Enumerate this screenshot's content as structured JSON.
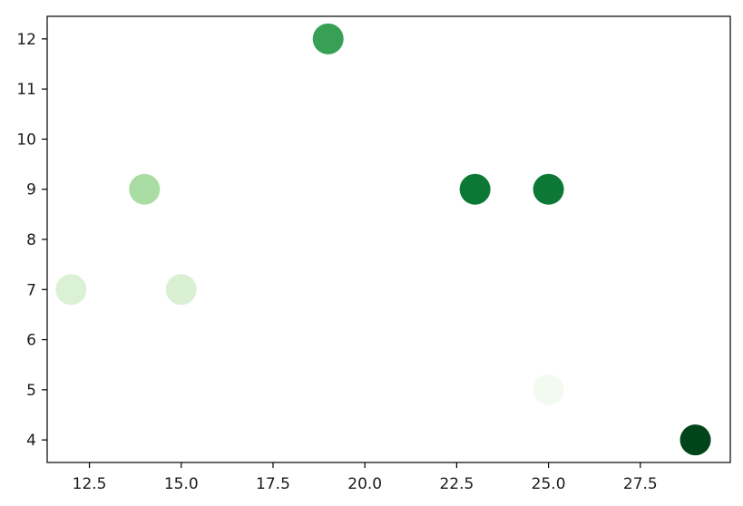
{
  "chart_data": {
    "type": "scatter",
    "title": "",
    "xlabel": "",
    "ylabel": "",
    "xlim": [
      11.35,
      29.95
    ],
    "ylim": [
      3.55,
      12.45
    ],
    "grid": false,
    "colormap": "Greens",
    "x_ticks": [
      12.5,
      15.0,
      17.5,
      20.0,
      22.5,
      25.0,
      27.5
    ],
    "x_tick_labels": [
      "12.5",
      "15.0",
      "17.5",
      "20.0",
      "22.5",
      "25.0",
      "27.5"
    ],
    "y_ticks": [
      4,
      5,
      6,
      7,
      8,
      9,
      10,
      11,
      12
    ],
    "y_tick_labels": [
      "4",
      "5",
      "6",
      "7",
      "8",
      "9",
      "10",
      "11",
      "12"
    ],
    "points": [
      {
        "x": 12,
        "y": 7,
        "color": "#dbf1d6"
      },
      {
        "x": 15,
        "y": 7,
        "color": "#d9f0d3"
      },
      {
        "x": 14,
        "y": 9,
        "color": "#a9dca3"
      },
      {
        "x": 19,
        "y": 12,
        "color": "#37a055"
      },
      {
        "x": 23,
        "y": 9,
        "color": "#0d7835"
      },
      {
        "x": 25,
        "y": 9,
        "color": "#0d7836"
      },
      {
        "x": 25,
        "y": 5,
        "color": "#f3faf0"
      },
      {
        "x": 29,
        "y": 4,
        "color": "#00441b"
      }
    ]
  }
}
